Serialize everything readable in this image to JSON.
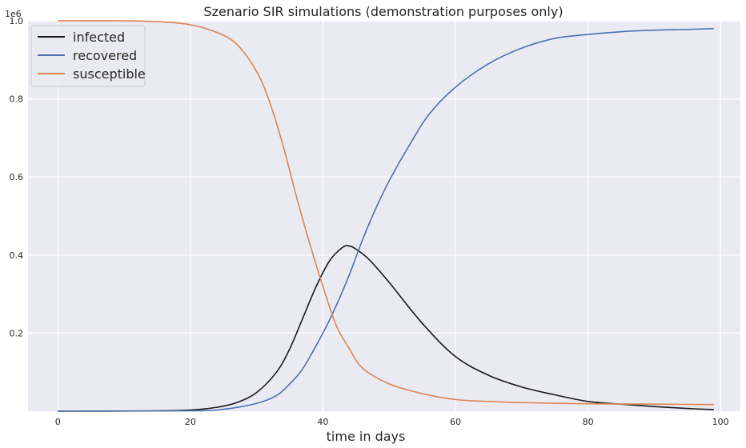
{
  "chart_data": {
    "type": "line",
    "title": "Szenario SIR simulations  (demonstration purposes only)",
    "xlabel": "time in days",
    "ylabel": "",
    "y_offset_label": "1e6",
    "xlim": [
      -4.5,
      103
    ],
    "ylim": [
      0,
      1.0
    ],
    "xticks": [
      0,
      20,
      40,
      60,
      80,
      100
    ],
    "yticks": [
      0.2,
      0.4,
      0.6,
      0.8,
      1.0
    ],
    "xtick_labels": [
      "0",
      "20",
      "40",
      "60",
      "80",
      "100"
    ],
    "ytick_labels": [
      "0.2",
      "0.4",
      "0.6",
      "0.8",
      "1.0"
    ],
    "grid": true,
    "legend_position": "top-left",
    "background": "#eaeaf2",
    "series": [
      {
        "name": "infected",
        "color": "#1a1a1a",
        "x": [
          0,
          10,
          15,
          20,
          24,
          27,
          30,
          33,
          35,
          37,
          39,
          41,
          43,
          44,
          45,
          47,
          50,
          55,
          60,
          65,
          70,
          75,
          80,
          85,
          90,
          95,
          99
        ],
        "y": [
          0,
          0.0005,
          0.001,
          0.003,
          0.01,
          0.022,
          0.048,
          0.1,
          0.16,
          0.24,
          0.32,
          0.385,
          0.42,
          0.423,
          0.415,
          0.388,
          0.33,
          0.225,
          0.14,
          0.092,
          0.062,
          0.042,
          0.025,
          0.018,
          0.012,
          0.007,
          0.004
        ]
      },
      {
        "name": "recovered",
        "color": "#4c72b0",
        "x": [
          0,
          20,
          25,
          30,
          33,
          35,
          37,
          40,
          42,
          44,
          46,
          48,
          50,
          53,
          56,
          60,
          65,
          70,
          75,
          80,
          85,
          90,
          95,
          99
        ],
        "y": [
          0,
          0.001,
          0.005,
          0.02,
          0.04,
          0.07,
          0.11,
          0.2,
          0.27,
          0.35,
          0.44,
          0.52,
          0.59,
          0.68,
          0.76,
          0.83,
          0.89,
          0.93,
          0.955,
          0.965,
          0.972,
          0.976,
          0.978,
          0.98
        ]
      },
      {
        "name": "susceptible",
        "color": "#dd8452",
        "x": [
          0,
          10,
          15,
          20,
          24,
          27,
          30,
          32,
          34,
          36,
          38,
          40,
          42,
          44,
          46,
          50,
          55,
          60,
          65,
          70,
          80,
          90,
          99
        ],
        "y": [
          1.0,
          1.0,
          0.998,
          0.99,
          0.97,
          0.94,
          0.87,
          0.79,
          0.68,
          0.55,
          0.43,
          0.32,
          0.22,
          0.16,
          0.11,
          0.07,
          0.045,
          0.03,
          0.025,
          0.022,
          0.019,
          0.018,
          0.017
        ]
      }
    ]
  }
}
